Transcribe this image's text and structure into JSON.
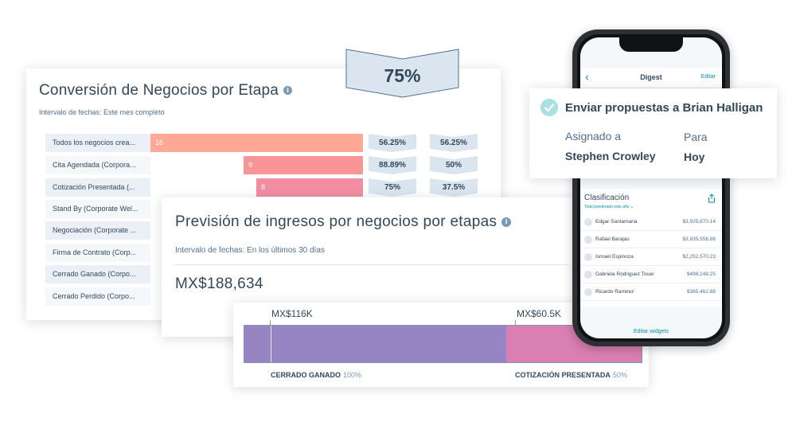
{
  "funnel": {
    "title": "Conversión de Negocios por Etapa",
    "info_icon": "i",
    "date_range": "Intervalo de fechas: Este mes completo",
    "stages": [
      {
        "label": "Todos los negocios crea...",
        "count": "16",
        "count_value": 16,
        "next_rate": "56.25%",
        "cumulative_rate": "56.25%",
        "color": "#ffa896"
      },
      {
        "label": "Cita Agendada (Corpora...",
        "count": "9",
        "count_value": 9,
        "next_rate": "88.89%",
        "cumulative_rate": "50%",
        "color": "#f99497"
      },
      {
        "label": "Cotización Presentada (...",
        "count": "8",
        "count_value": 8,
        "next_rate": "75%",
        "cumulative_rate": "37.5%",
        "color": "#f28da2"
      },
      {
        "label": "Stand By (Corporate Wel..."
      },
      {
        "label": "Negociación (Corporate ..."
      },
      {
        "label": "Firma de Contrato (Corp..."
      },
      {
        "label": "Cerrado Ganado (Corpo..."
      },
      {
        "label": "Cerrado Perdido (Corpo..."
      }
    ]
  },
  "highlight": {
    "value": "75%",
    "color": "#dbe5f0"
  },
  "forecast": {
    "title": "Previsión de ingresos por negocios por etapas",
    "info_icon": "i",
    "date_range": "Intervalo de fechas: En los últimos 30 días",
    "total": "MX$188,634"
  },
  "forecast_bar": {
    "segments": [
      {
        "amount_label": "MX$116K",
        "legend": "CERRADO GANADO",
        "percent": "100%",
        "share": 0.66,
        "color": "#9784c2"
      },
      {
        "amount_label": "MX$60.5K",
        "legend": "COTIZACIÓN PRESENTADA",
        "percent": "50%",
        "share": 0.34,
        "color": "#d97fb1"
      }
    ]
  },
  "phone": {
    "back_icon": "chevron-left-icon",
    "title": "Digest",
    "edit_label": "Editar",
    "leaderboard_title": "Clasificación",
    "leaderboard_subtitle": "Total ponderado este año ⌄",
    "share_icon": "share-icon",
    "rows": [
      {
        "name": "Edgar Santamaria",
        "value": "$3,925,870.14"
      },
      {
        "name": "Rafael Barajas",
        "value": "$3,835,556.88"
      },
      {
        "name": "Ismael Espinoza",
        "value": "$2,252,570.23"
      },
      {
        "name": "Gabriela Rodriguez Tovar",
        "value": "$498,248.25"
      },
      {
        "name": "Ricardo Ramirez",
        "value": "$365,462.88"
      }
    ],
    "footer": "Editar widgets"
  },
  "task": {
    "check_icon": "check-circle-icon",
    "title": "Enviar propuestas a Brian Halligan",
    "assigned_label": "Asignado a",
    "assigned_value": "Stephen Crowley",
    "due_label": "Para",
    "due_value": "Hoy"
  }
}
